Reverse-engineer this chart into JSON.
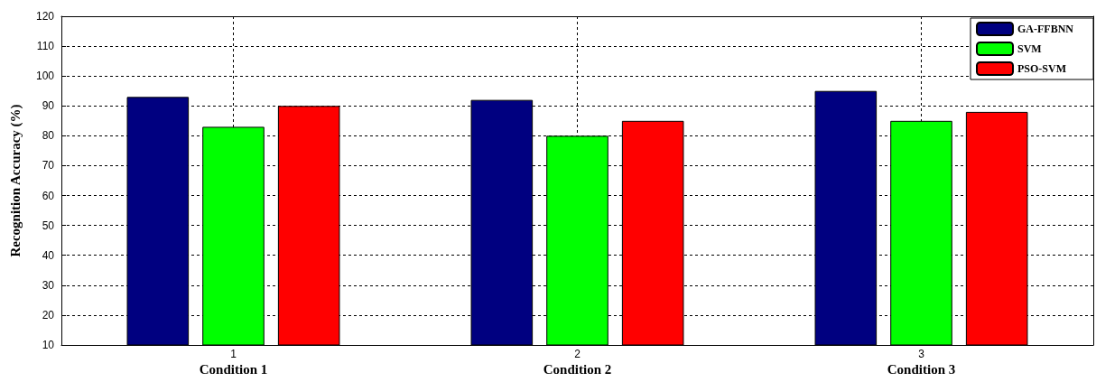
{
  "chart_data": {
    "type": "bar",
    "ylabel": "Recognition Accuracy (%)",
    "categories": [
      "1",
      "2",
      "3"
    ],
    "series": [
      {
        "name": "GA-FFBNN",
        "color": "#000080",
        "values": [
          93,
          92,
          95
        ]
      },
      {
        "name": "SVM",
        "color": "#00ff00",
        "values": [
          83,
          80,
          85
        ]
      },
      {
        "name": "PSO-SVM",
        "color": "#ff0000",
        "values": [
          90,
          85,
          88
        ]
      }
    ],
    "ylim": [
      10,
      120
    ],
    "yticks": [
      10,
      20,
      30,
      40,
      50,
      60,
      70,
      80,
      90,
      100,
      110,
      120
    ],
    "annotations": [
      "Condition 1",
      "Condition 2",
      "Condition 3"
    ],
    "grid": true,
    "legend": "top right"
  }
}
